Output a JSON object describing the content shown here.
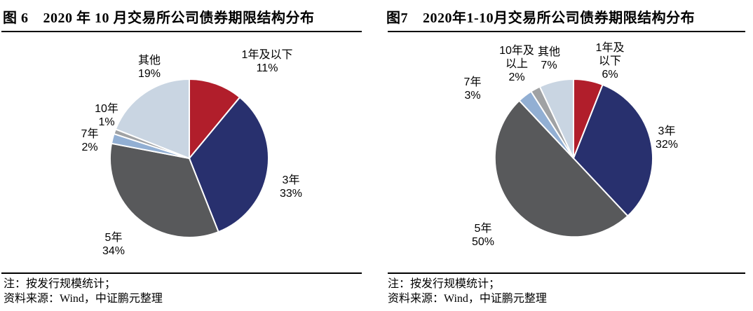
{
  "chart_data": [
    {
      "type": "pie",
      "title": "图 6 2020 年 10 月交易所公司债券期限结构分布",
      "categories": [
        "1年及以下",
        "3年",
        "5年",
        "7年",
        "10年",
        "其他"
      ],
      "values": [
        11,
        33,
        34,
        2,
        1,
        19
      ],
      "unit": "%",
      "colors": [
        "#B11E2B",
        "#28306E",
        "#58595B",
        "#92AFD3",
        "#A0A2A4",
        "#C9D5E2"
      ],
      "start_angle": "top",
      "direction": "clockwise",
      "legend": "none",
      "label_style": "outside category name + percent"
    },
    {
      "type": "pie",
      "title": "图7 2020年1-10月交易所公司债券期限结构分布",
      "categories": [
        "1年及以下",
        "3年",
        "5年",
        "7年",
        "10年及以上",
        "其他"
      ],
      "values": [
        6,
        32,
        50,
        3,
        2,
        7
      ],
      "unit": "%",
      "colors": [
        "#B11E2B",
        "#28306E",
        "#58595B",
        "#92AFD3",
        "#A0A2A4",
        "#C9D5E2"
      ],
      "start_angle": "top",
      "direction": "clockwise",
      "legend": "none",
      "label_style": "outside category name + percent"
    }
  ],
  "panels": [
    {
      "fig_label": "图 6",
      "title": "2020 年 10 月交易所公司债券期限结构分布",
      "callouts": [
        {
          "lines": [
            "1年及以下",
            "11%"
          ]
        },
        {
          "lines": [
            "3年",
            "33%"
          ]
        },
        {
          "lines": [
            "5年",
            "34%"
          ]
        },
        {
          "lines": [
            "7年",
            "2%"
          ]
        },
        {
          "lines": [
            "10年",
            "1%"
          ]
        },
        {
          "lines": [
            "其他",
            "19%"
          ]
        }
      ],
      "notes": [
        "注：按发行规模统计；",
        "资料来源：Wind，中证鹏元整理"
      ]
    },
    {
      "fig_label": "图7",
      "title": "2020年1-10月交易所公司债券期限结构分布",
      "callouts": [
        {
          "lines": [
            "1年及",
            "以下",
            "6%"
          ]
        },
        {
          "lines": [
            "3年",
            "32%"
          ]
        },
        {
          "lines": [
            "5年",
            "50%"
          ]
        },
        {
          "lines": [
            "7年",
            "3%"
          ]
        },
        {
          "lines": [
            "10年及",
            "以上",
            "2%"
          ]
        },
        {
          "lines": [
            "其他",
            "7%"
          ]
        }
      ],
      "notes": [
        "注：按发行规模统计；",
        "资料来源：Wind，中证鹏元整理"
      ]
    }
  ]
}
